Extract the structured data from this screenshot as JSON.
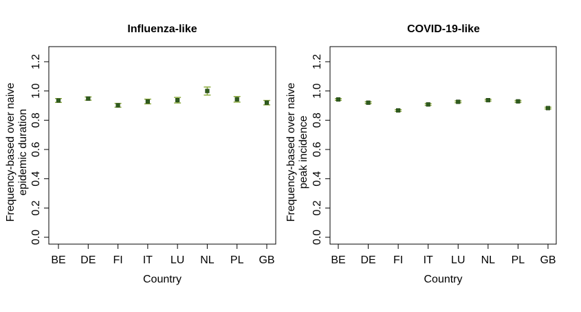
{
  "chart_data": [
    {
      "type": "scatter",
      "title": "Influenza-like",
      "xlabel": "Country",
      "ylabel_lines": [
        "Frequency-based over naive",
        "epidemic duration"
      ],
      "categories": [
        "BE",
        "DE",
        "FI",
        "IT",
        "LU",
        "NL",
        "PL",
        "GB"
      ],
      "values": [
        0.935,
        0.948,
        0.902,
        0.928,
        0.937,
        1.0,
        0.943,
        0.92
      ],
      "error_low": [
        0.922,
        0.937,
        0.889,
        0.912,
        0.918,
        0.972,
        0.924,
        0.905
      ],
      "error_high": [
        0.948,
        0.959,
        0.915,
        0.944,
        0.956,
        1.027,
        0.962,
        0.935
      ],
      "ylim": [
        0,
        1.3
      ],
      "yticks": [
        "0.0",
        "0.2",
        "0.4",
        "0.6",
        "0.8",
        "1.0",
        "1.2"
      ],
      "grid": false,
      "marker_color": "#2f5d1e",
      "errorbar_color": "#8aaa3c"
    },
    {
      "type": "scatter",
      "title": "COVID-19-like",
      "xlabel": "Country",
      "ylabel_lines": [
        "Frequency-based over naive",
        "peak incidence"
      ],
      "categories": [
        "BE",
        "DE",
        "FI",
        "IT",
        "LU",
        "NL",
        "PL",
        "GB"
      ],
      "values": [
        0.942,
        0.92,
        0.867,
        0.908,
        0.926,
        0.937,
        0.929,
        0.883
      ],
      "error_low": [
        0.936,
        0.914,
        0.861,
        0.902,
        0.92,
        0.931,
        0.923,
        0.877
      ],
      "error_high": [
        0.948,
        0.926,
        0.873,
        0.914,
        0.932,
        0.943,
        0.935,
        0.889
      ],
      "ylim": [
        0,
        1.3
      ],
      "yticks": [
        "0.0",
        "0.2",
        "0.4",
        "0.6",
        "0.8",
        "1.0",
        "1.2"
      ],
      "grid": false,
      "marker_color": "#2f5d1e",
      "errorbar_color": "#8aaa3c"
    }
  ]
}
